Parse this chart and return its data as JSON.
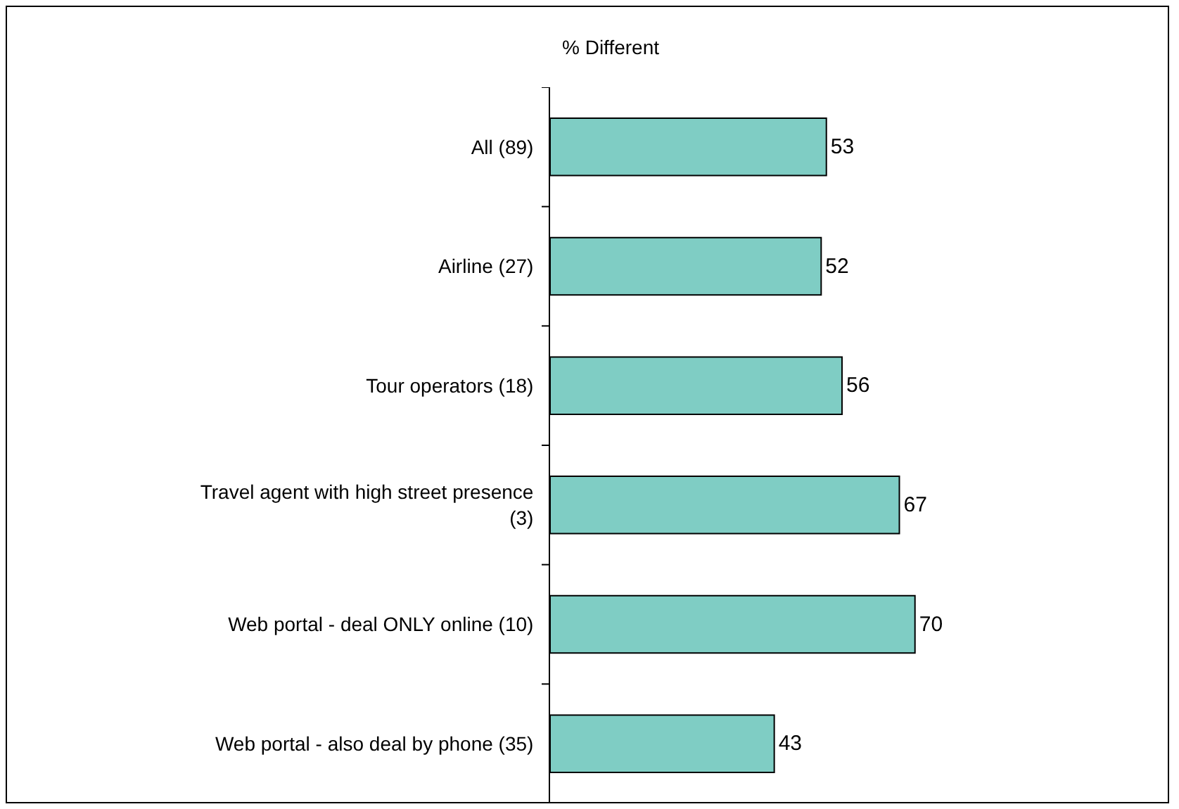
{
  "chart_data": {
    "type": "bar",
    "orientation": "horizontal",
    "title": "% Different",
    "categories": [
      "All (89)",
      "Airline (27)",
      "Tour operators (18)",
      "Travel agent with high street presence (3)",
      "Web portal - deal ONLY online (10)",
      "Web portal - also deal by phone (35)"
    ],
    "values": [
      53,
      52,
      56,
      67,
      70,
      43
    ],
    "color": "#7fcdc4",
    "data_labels": true
  }
}
